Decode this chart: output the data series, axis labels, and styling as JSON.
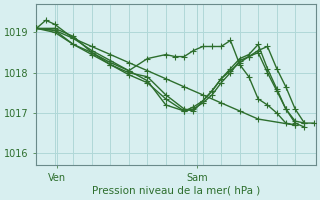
{
  "background_color": "#d8eff0",
  "grid_color": "#b0d8d8",
  "line_color": "#2d6e2d",
  "marker_color": "#2d6e2d",
  "title": "Pression niveau de la mer( hPa )",
  "xlabel": "Pression niveau de la mer( hPa )",
  "xtick_labels": [
    "Ven",
    "Sam"
  ],
  "xtick_positions": [
    0.08,
    0.62
  ],
  "ylim": [
    1015.7,
    1019.7
  ],
  "yticks": [
    1016,
    1017,
    1018,
    1019
  ],
  "series": [
    [
      1019.1,
      1019.05,
      1018.85,
      1018.65,
      1018.45,
      1018.25,
      1018.05,
      1017.85,
      1017.65,
      1017.45,
      1017.25,
      1017.05,
      1016.85,
      1016.7
    ],
    [
      1019.1,
      1019.3,
      1019.2,
      1018.85,
      1018.55,
      1018.3,
      1018.05,
      1018.35,
      1018.45,
      1018.4,
      1018.4,
      1018.55,
      1018.65,
      1018.65,
      1018.65,
      1018.8,
      1018.2,
      1017.9,
      1017.35,
      1017.2,
      1017.0,
      1016.75,
      1016.7
    ],
    [
      1019.1,
      1019.1,
      1018.9,
      1018.5,
      1018.2,
      1018.0,
      1017.9,
      1017.45,
      1017.1,
      1017.05,
      1017.3,
      1017.55,
      1017.85,
      1018.05,
      1018.25,
      1018.4,
      1018.55,
      1018.65,
      1018.1,
      1017.65,
      1017.1,
      1016.75,
      1016.75
    ],
    [
      1019.1,
      1019.05,
      1018.7,
      1018.5,
      1018.25,
      1018.05,
      1017.8,
      1017.2,
      1017.05,
      1017.15,
      1017.3,
      1017.55,
      1017.85,
      1018.1,
      1018.35,
      1018.45,
      1018.7,
      1018.1,
      1017.6,
      1017.1,
      1016.8,
      1016.75
    ],
    [
      1019.1,
      1019.0,
      1018.7,
      1018.45,
      1018.2,
      1017.95,
      1017.75,
      1017.35,
      1017.05,
      1017.1,
      1017.25,
      1017.45,
      1017.75,
      1018.0,
      1018.3,
      1018.4,
      1018.5,
      1018.0,
      1017.55,
      1017.1,
      1016.75,
      1016.65
    ]
  ],
  "series_x": [
    [
      0.0,
      0.071,
      0.143,
      0.214,
      0.286,
      0.357,
      0.429,
      0.5,
      0.571,
      0.643,
      0.714,
      0.786,
      0.857,
      1.0
    ],
    [
      0.0,
      0.036,
      0.071,
      0.143,
      0.214,
      0.286,
      0.357,
      0.429,
      0.5,
      0.536,
      0.571,
      0.607,
      0.643,
      0.679,
      0.714,
      0.75,
      0.786,
      0.821,
      0.857,
      0.893,
      0.929,
      0.964,
      1.0
    ],
    [
      0.0,
      0.071,
      0.143,
      0.214,
      0.286,
      0.357,
      0.429,
      0.5,
      0.571,
      0.607,
      0.643,
      0.679,
      0.714,
      0.75,
      0.786,
      0.821,
      0.857,
      0.893,
      0.929,
      0.964,
      1.0,
      1.036,
      1.071
    ],
    [
      0.0,
      0.071,
      0.143,
      0.214,
      0.286,
      0.357,
      0.429,
      0.5,
      0.571,
      0.607,
      0.643,
      0.679,
      0.714,
      0.75,
      0.786,
      0.821,
      0.857,
      0.893,
      0.929,
      0.964,
      1.0,
      1.036
    ],
    [
      0.0,
      0.071,
      0.143,
      0.214,
      0.286,
      0.357,
      0.429,
      0.5,
      0.571,
      0.607,
      0.643,
      0.679,
      0.714,
      0.75,
      0.786,
      0.821,
      0.857,
      0.893,
      0.929,
      0.964,
      1.0,
      1.036
    ]
  ],
  "vline_x": 0.62,
  "marker_size": 3,
  "linewidth": 1.0
}
